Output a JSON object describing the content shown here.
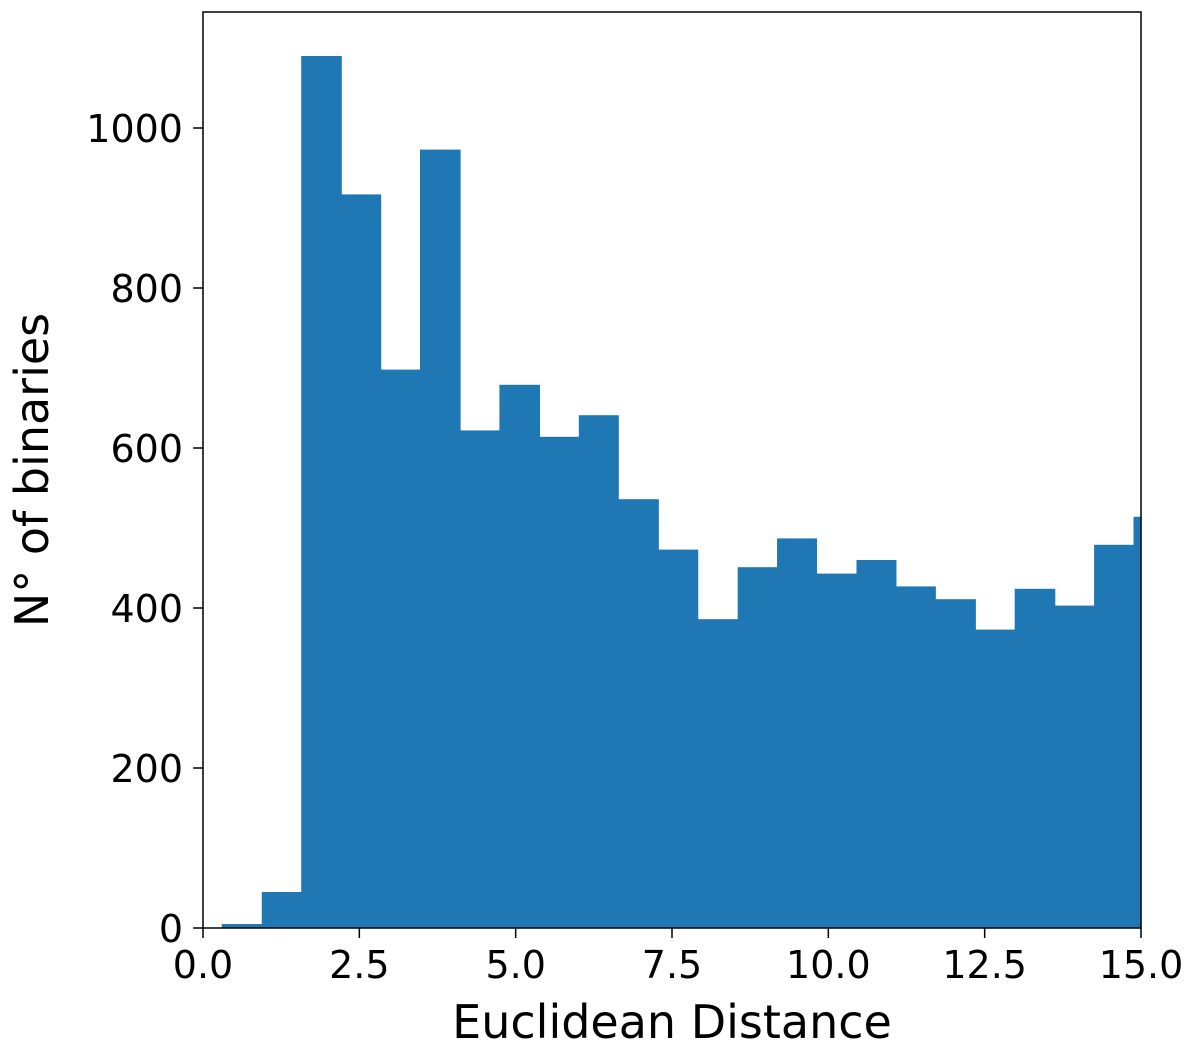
{
  "chart_data": {
    "type": "bar",
    "subtype": "histogram",
    "title": "",
    "xlabel": "Euclidean Distance",
    "ylabel": "N° of binaries",
    "xlim": [
      0.0,
      15.0
    ],
    "ylim": [
      0,
      1145
    ],
    "grid": false,
    "legend": "none",
    "bar_color": "#1f77b4",
    "bin_edges": [
      0.3,
      0.94,
      1.57,
      2.21,
      2.84,
      3.47,
      4.11,
      4.74,
      5.38,
      6.01,
      6.64,
      7.28,
      7.91,
      8.55,
      9.18,
      9.81,
      10.45,
      11.08,
      11.71,
      12.35,
      12.98,
      13.62,
      14.25,
      14.88,
      15.0
    ],
    "values": [
      5,
      45,
      1090,
      917,
      698,
      973,
      622,
      679,
      614,
      641,
      536,
      473,
      386,
      451,
      487,
      443,
      460,
      427,
      411,
      373,
      424,
      403,
      479,
      514
    ],
    "x_ticks": [
      {
        "value": 0.0,
        "label": "0.0"
      },
      {
        "value": 2.5,
        "label": "2.5"
      },
      {
        "value": 5.0,
        "label": "5.0"
      },
      {
        "value": 7.5,
        "label": "7.5"
      },
      {
        "value": 10.0,
        "label": "10.0"
      },
      {
        "value": 12.5,
        "label": "12.5"
      },
      {
        "value": 15.0,
        "label": "15.0"
      }
    ],
    "y_ticks": [
      {
        "value": 0,
        "label": "0"
      },
      {
        "value": 200,
        "label": "200"
      },
      {
        "value": 400,
        "label": "400"
      },
      {
        "value": 600,
        "label": "600"
      },
      {
        "value": 800,
        "label": "800"
      },
      {
        "value": 1000,
        "label": "1000"
      }
    ]
  }
}
